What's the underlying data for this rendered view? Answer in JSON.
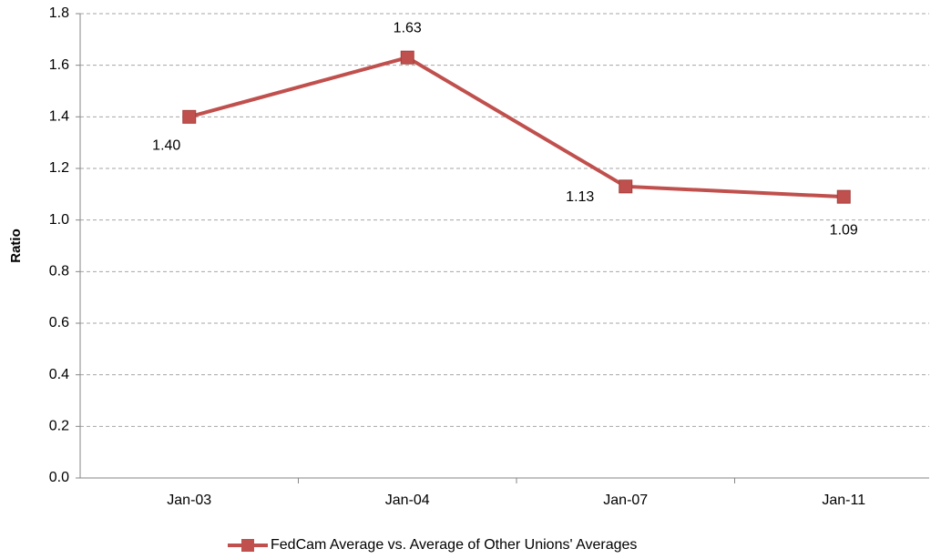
{
  "chart_data": {
    "type": "line",
    "y_label": "Ratio",
    "categories": [
      "Jan-03",
      "Jan-04",
      "Jan-07",
      "Jan-11"
    ],
    "series": [
      {
        "name": "FedCam Average vs. Average of Other Unions' Averages",
        "color": "#c0504d",
        "values": [
          1.4,
          1.63,
          1.13,
          1.09
        ],
        "value_labels": [
          "1.40",
          "1.63",
          "1.13",
          "1.09"
        ]
      }
    ],
    "ylim": [
      0,
      1.8
    ],
    "yticks": [
      {
        "value": 0,
        "label": "0.0"
      },
      0.2,
      0.4,
      0.6,
      0.8,
      {
        "value": 1,
        "label": "1.0"
      },
      1.2,
      1.4,
      1.6,
      1.8
    ],
    "grid": true,
    "legend": "bottom"
  }
}
